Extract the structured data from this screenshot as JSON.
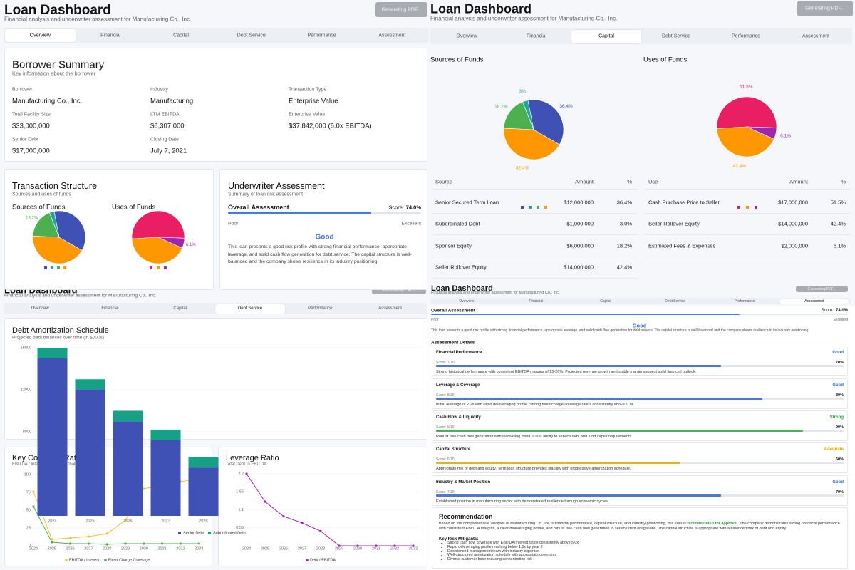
{
  "header": {
    "title": "Loan Dashboard",
    "subtitle": "Financial analysis and underwriter assessment for Manufacturing Co., Inc.",
    "button": "Generating PDF..."
  },
  "tabs": [
    "Overview",
    "Financial",
    "Capital",
    "Debt Service",
    "Performance",
    "Assessment"
  ],
  "overview": {
    "borrower_summary": {
      "title": "Borrower Summary",
      "subtitle": "Key information about the borrower",
      "fields": [
        {
          "label": "Borrower",
          "value": "Manufacturing Co., Inc."
        },
        {
          "label": "Industry",
          "value": "Manufacturing"
        },
        {
          "label": "Transaction Type",
          "value": "Enterprise Value"
        },
        {
          "label": "Total Facility Size",
          "value": "$33,000,000"
        },
        {
          "label": "LTM EBITDA",
          "value": "$6,307,000"
        },
        {
          "label": "Enterprise Value",
          "value": "$37,842,000 (6.0x EBITDA)"
        },
        {
          "label": "Senior Debt",
          "value": "$17,000,000"
        },
        {
          "label": "Closing Date",
          "value": "July 7, 2021"
        }
      ]
    },
    "transaction_structure": {
      "title": "Transaction Structure",
      "subtitle": "Sources and uses of funds",
      "sources_title": "Sources of Funds",
      "uses_title": "Uses of Funds"
    },
    "underwriter_assessment": {
      "title": "Underwriter Assessment",
      "subtitle": "Summary of loan risk assessment"
    }
  },
  "overall_assessment": {
    "title": "Overall Assessment",
    "score_prefix": "Score:",
    "score": 74.0,
    "score_label": "74.0%",
    "min_label": "Poor",
    "max_label": "Excellent",
    "rating": "Good",
    "summary": "This loan presents a good risk profile with strong financial performance, appropriate leverage, and solid cash flow generation for debt service. The capital structure is well-balanced and the company shows resilience in its industry positioning."
  },
  "capital": {
    "sources": {
      "type": "pie",
      "title": "Sources of Funds",
      "values": [
        36.4,
        3,
        18.2,
        42.4
      ],
      "value_labels": [
        "36.4%",
        "3%",
        "18.2%",
        "42.4%"
      ],
      "colors": [
        "#3f51b5",
        "#26a69a",
        "#4caf50",
        "#ff9800"
      ],
      "table": {
        "columns": [
          "Source",
          "Amount",
          "%"
        ],
        "rows": [
          [
            "Senior Secured Term Loan",
            "$12,000,000",
            "36.4%"
          ],
          [
            "Subordinated Debt",
            "$1,000,000",
            "3.0%"
          ],
          [
            "Sponsor Equity",
            "$6,000,000",
            "18.2%"
          ],
          [
            "Seller Rollover Equity",
            "$14,000,000",
            "42.4%"
          ]
        ]
      }
    },
    "uses": {
      "type": "pie",
      "title": "Uses of Funds",
      "values": [
        51.5,
        42.4,
        6.1
      ],
      "value_labels": [
        "51.5%",
        "42.4%",
        "6.1%"
      ],
      "colors": [
        "#e91e63",
        "#ff9800",
        "#9c27b0"
      ],
      "table": {
        "columns": [
          "Use",
          "Amount",
          "%"
        ],
        "rows": [
          [
            "Cash Purchase Price to Seller",
            "$17,000,000",
            "51.5%"
          ],
          [
            "Seller Rollover Equity",
            "$14,000,000",
            "42.4%"
          ],
          [
            "Estimated Fees & Expenses",
            "$2,000,000",
            "6.1%"
          ]
        ]
      }
    }
  },
  "debt_service": {
    "amortization": {
      "type": "bar",
      "stacked": true,
      "title": "Debt Amortization Schedule",
      "subtitle": "Projected debt balances over time (in $000s)",
      "categories": [
        "2024",
        "2025",
        "2026",
        "2027",
        "2028"
      ],
      "series": [
        {
          "name": "Senior Debt",
          "color": "#3f51b5",
          "values": [
            15000,
            12000,
            9000,
            7200,
            4600
          ]
        },
        {
          "name": "Subordinated Debt",
          "color": "#16a085",
          "values": [
            1000,
            1000,
            1000,
            1000,
            1000
          ]
        }
      ],
      "ylim": [
        0,
        16000
      ],
      "yticks": [
        8000,
        12000,
        16000
      ],
      "grid": true
    },
    "coverage": {
      "type": "line",
      "title": "Key Coverage Ratios",
      "subtitle": "EBITDA / Interest and Fixed Charge Coverage",
      "categories": [
        "2024",
        "2025",
        "2026",
        "2027",
        "2028",
        "2029",
        "2030",
        "2031",
        "2032",
        "2033"
      ],
      "series": [
        {
          "name": "EBITDA / Interest",
          "color": "#fbc02d",
          "values": [
            76,
            9,
            11,
            13,
            17,
            36,
            80,
            85,
            90,
            94
          ]
        },
        {
          "name": "Fixed Charge Coverage",
          "color": "#4caf50",
          "values": [
            55,
            5,
            3,
            3,
            2,
            3,
            3,
            3,
            3,
            3
          ]
        }
      ],
      "ylim": [
        0,
        100
      ],
      "yticks": [
        0,
        25,
        50,
        75,
        100
      ],
      "grid": true
    },
    "leverage": {
      "type": "line",
      "title": "Leverage Ratio",
      "subtitle": "Total Debt to EBITDA",
      "categories": [
        "2024",
        "2025",
        "2026",
        "2027",
        "2028",
        "2029",
        "2030",
        "2031",
        "2032",
        "2033"
      ],
      "series": [
        {
          "name": "Debt / EBITDA",
          "color": "#9c27b0",
          "values": [
            2.2,
            1.35,
            0.9,
            0.7,
            0.45,
            0,
            0,
            0,
            0,
            0
          ]
        }
      ],
      "ylim": [
        0,
        2.2
      ],
      "yticks": [
        0.55,
        1.1,
        1.65,
        2.2
      ],
      "grid": true
    }
  },
  "assessment": {
    "details_title": "Assessment Details",
    "items": [
      {
        "name": "Financial Performance",
        "rating": "Good",
        "color": "#3b6fd4",
        "score": "Score: 7/10",
        "percent": 70,
        "percent_label": "70%",
        "description": "Strong historical performance with consistent EBITDA margins of 15-26%. Projected revenue growth and stable margin suggest solid financial outlook."
      },
      {
        "name": "Leverage & Coverage",
        "rating": "Good",
        "color": "#3b6fd4",
        "score": "Score: 8/10",
        "percent": 80,
        "percent_label": "80%",
        "description": "Initial leverage of 2.2x with rapid deleveraging profile. Strong fixed charge coverage ratios consistently above 1.7x."
      },
      {
        "name": "Cash Flow & Liquidity",
        "rating": "Strong",
        "color": "#2e9e44",
        "score": "Score: 9/10",
        "percent": 90,
        "percent_label": "90%",
        "description": "Robust free cash flow generation with increasing trend. Clear ability to service debt and fund capex requirements."
      },
      {
        "name": "Capital Structure",
        "rating": "Adequate",
        "color": "#e0a800",
        "score": "Score: 6/10",
        "percent": 60,
        "percent_label": "60%",
        "description": "Appropriate mix of debt and equity. Term loan structure provides stability with progressive amortization schedule."
      },
      {
        "name": "Industry & Market Position",
        "rating": "Good",
        "color": "#3b6fd4",
        "score": "Score: 7/10",
        "percent": 70,
        "percent_label": "70%",
        "description": "Established position in manufacturing sector with demonstrated resilience through economic cycles."
      }
    ],
    "recommendation": {
      "title": "Recommendation",
      "text_before": "Based on the comprehensive analysis of Manufacturing Co., Inc.'s financial performance, capital structure, and industry positioning, this loan is ",
      "highlight": "recommended for approval",
      "text_after": ". The company demonstrates strong historical performance with consistent EBITDA margins, a clear deleveraging profile, and robust free cash flow generation to service debt obligations. The capital structure is appropriate with a balanced mix of debt and equity.",
      "mitigants_title": "Key Risk Mitigants:",
      "mitigants": [
        "Strong cash flow coverage with EBITDA/Interest ratios consistently above 5.0x",
        "Rapid deleveraging profile reaching below 1.0x by year 3",
        "Experienced management team with industry expertise",
        "Well-structured amortization schedule with appropriate covenants",
        "Diverse customer base reducing concentration risk"
      ]
    }
  }
}
